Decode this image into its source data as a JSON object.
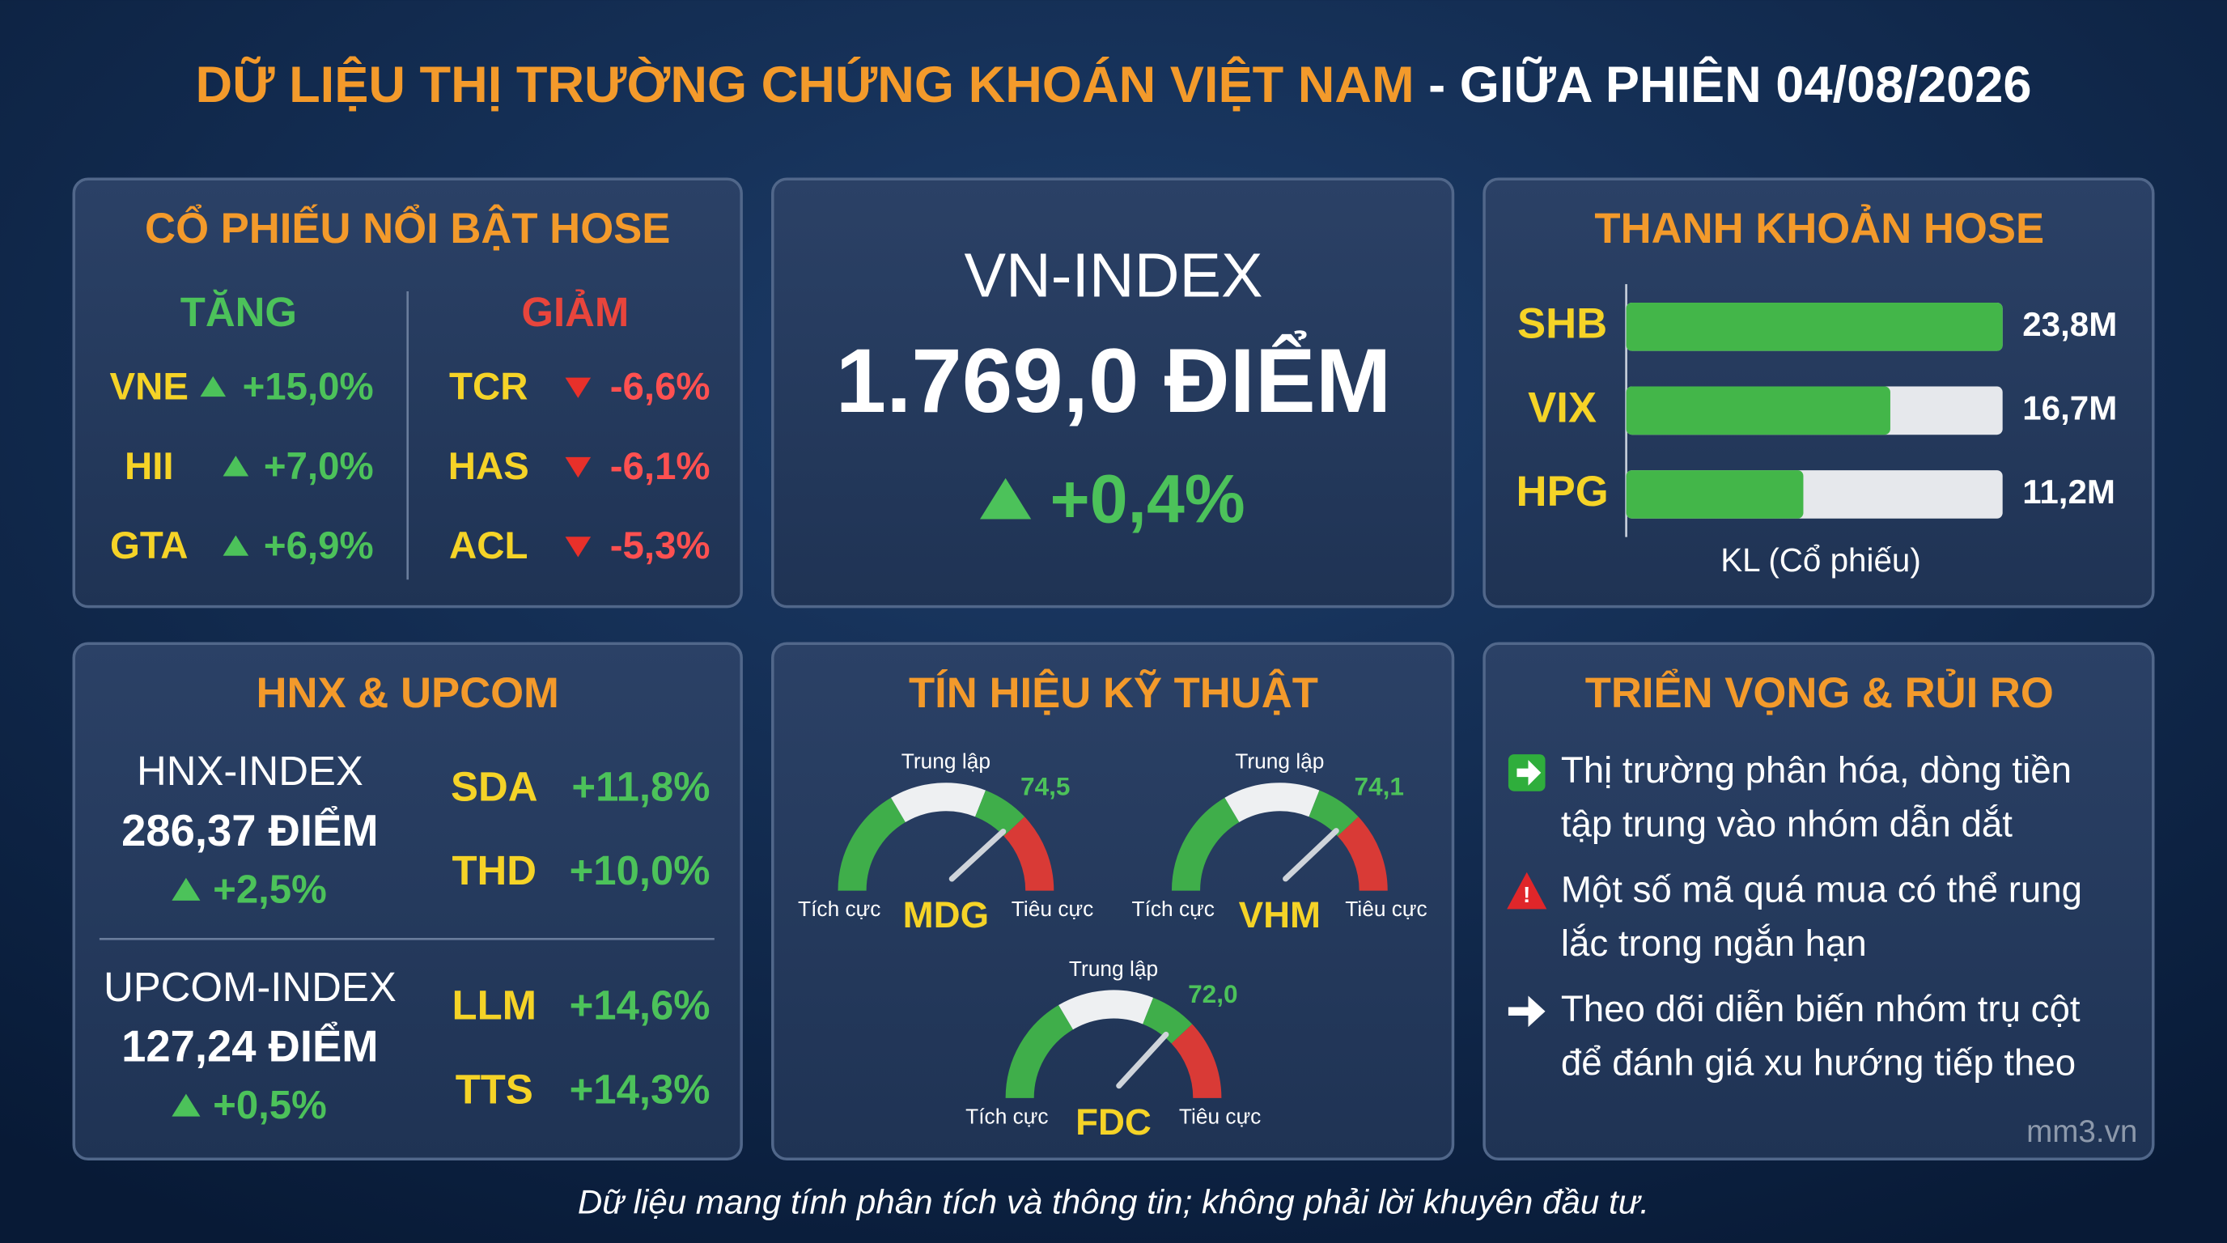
{
  "header": {
    "title_main": "DỮ LIỆU THỊ TRƯỜNG CHỨNG KHOÁN VIỆT NAM",
    "title_rest": "- GIỮA PHIÊN 04/08/2026"
  },
  "hose_movers": {
    "title": "CỔ PHIẾU NỔI BẬT HOSE",
    "gainers": {
      "heading": "TĂNG",
      "rows": [
        {
          "ticker": "VNE",
          "change": "+15,0%"
        },
        {
          "ticker": "HII",
          "change": "+7,0%"
        },
        {
          "ticker": "GTA",
          "change": "+6,9%"
        }
      ]
    },
    "losers": {
      "heading": "GIẢM",
      "rows": [
        {
          "ticker": "TCR",
          "change": "-6,6%"
        },
        {
          "ticker": "HAS",
          "change": "-6,1%"
        },
        {
          "ticker": "ACL",
          "change": "-5,3%"
        }
      ]
    }
  },
  "vn_index": {
    "label": "VN-INDEX",
    "value": "1.769,0 ĐIỂM",
    "change": "+0,4%"
  },
  "hnx_upcom": {
    "title": "HNX & UPCOM",
    "indices": [
      {
        "name": "HNX-INDEX",
        "value": "286,37 ĐIỂM",
        "change": "+2,5%",
        "stocks": [
          {
            "ticker": "SDA",
            "change": "+11,8%"
          },
          {
            "ticker": "THD",
            "change": "+10,0%"
          }
        ]
      },
      {
        "name": "UPCOM-INDEX",
        "value": "127,24 ĐIỂM",
        "change": "+0,5%",
        "stocks": [
          {
            "ticker": "LLM",
            "change": "+14,6%"
          },
          {
            "ticker": "TTS",
            "change": "+14,3%"
          }
        ]
      }
    ]
  },
  "chart_data": [
    {
      "type": "bar",
      "orientation": "horizontal",
      "title": "THANH KHOẢN HOSE",
      "categories": [
        "SHB",
        "VIX",
        "HPG"
      ],
      "values": [
        23.8,
        16.7,
        11.2
      ],
      "value_labels": [
        "23,8M",
        "16,7M",
        "11,2M"
      ],
      "xlabel": "KL (Cổ phiếu)",
      "xlim": [
        0,
        23.8
      ],
      "color": "#43b649"
    },
    {
      "type": "gauge",
      "title": "TÍN HIỆU KỸ THUẬT",
      "categories": [
        "MDG",
        "VHM",
        "FDC"
      ],
      "values": [
        74.5,
        74.1,
        72.0
      ],
      "value_labels": [
        "74,5",
        "74,1",
        "72,0"
      ],
      "lim": [
        0,
        100
      ],
      "top_label": "Trung lập",
      "left_label": "Tích cực",
      "right_label": "Tiêu cực"
    }
  ],
  "outlook": {
    "title": "TRIỂN VỌNG & RỦI RO",
    "items": [
      {
        "lines": [
          "Thị trường phân hóa, dòng tiền",
          "tập trung vào nhóm dẫn dắt"
        ]
      },
      {
        "lines": [
          "Một số mã quá mua có thể rung",
          "lắc trong ngắn hạn"
        ]
      },
      {
        "lines": [
          "Theo dõi diễn biến nhóm trụ cột",
          "để đánh giá xu hướng tiếp theo"
        ]
      }
    ],
    "watermark": "mm3.vn"
  },
  "footer": "Dữ liệu mang tính phân tích và thông tin; không phải lời khuyên đầu tư."
}
